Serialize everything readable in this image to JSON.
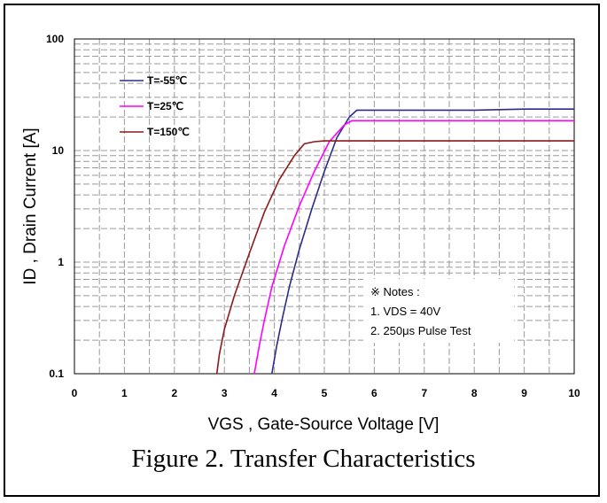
{
  "caption": "Figure 2. Transfer Characteristics",
  "chart_data": {
    "type": "line",
    "xlabel": "VGS , Gate-Source Voltage [V]",
    "ylabel": "ID , Drain Current [A]",
    "xlim": [
      0,
      10
    ],
    "ylim": [
      0.1,
      100
    ],
    "yscale": "log",
    "x_ticks": [
      "0",
      "1",
      "2",
      "3",
      "4",
      "5",
      "6",
      "7",
      "8",
      "9",
      "10"
    ],
    "y_ticks": [
      "0.1",
      "1",
      "10",
      "100"
    ],
    "grid": true,
    "legend_position": "top-left",
    "series": [
      {
        "name": "T=-55℃",
        "color": "#2b2b8c",
        "x": [
          3.95,
          4.05,
          4.15,
          4.3,
          4.5,
          4.75,
          5.0,
          5.25,
          5.5,
          5.65,
          6.0,
          7.0,
          8.0,
          9.0,
          10.0
        ],
        "y": [
          0.1,
          0.18,
          0.3,
          0.6,
          1.3,
          3.0,
          6.5,
          13.0,
          20.0,
          23.0,
          23.0,
          23.0,
          23.0,
          23.5,
          23.5
        ]
      },
      {
        "name": "T=25℃",
        "color": "#ff00ff",
        "x": [
          3.6,
          3.7,
          3.8,
          3.95,
          4.2,
          4.5,
          4.8,
          5.1,
          5.4,
          5.55,
          6.0,
          7.0,
          8.0,
          9.0,
          10.0
        ],
        "y": [
          0.1,
          0.18,
          0.3,
          0.6,
          1.4,
          3.2,
          6.5,
          12.0,
          17.0,
          18.5,
          18.5,
          18.5,
          18.5,
          18.5,
          18.5
        ]
      },
      {
        "name": "T=150℃",
        "color": "#8b1a1a",
        "x": [
          2.85,
          2.9,
          3.0,
          3.2,
          3.5,
          3.8,
          4.1,
          4.4,
          4.6,
          4.8,
          5.0,
          6.0,
          7.0,
          8.0,
          9.0,
          10.0
        ],
        "y": [
          0.1,
          0.15,
          0.25,
          0.5,
          1.2,
          2.8,
          5.5,
          9.0,
          11.5,
          12.0,
          12.2,
          12.2,
          12.2,
          12.2,
          12.2,
          12.2
        ]
      }
    ],
    "notes": [
      "※ Notes :",
      "1. VDS = 40V",
      "2. 250μs Pulse Test"
    ]
  }
}
